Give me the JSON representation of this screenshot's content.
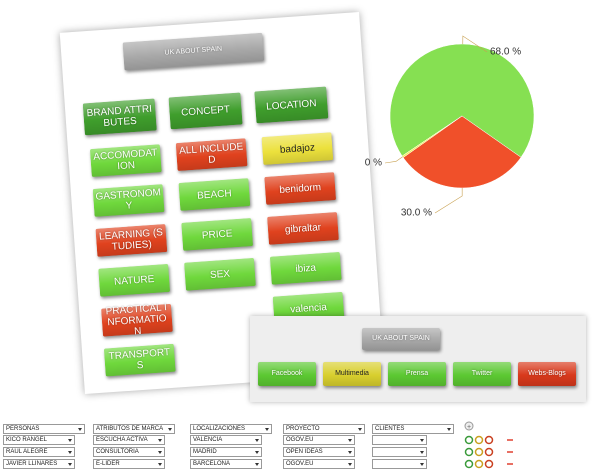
{
  "tree": {
    "root": {
      "label": "UK ABOUT SPAIN",
      "color": "#a8a8a8"
    },
    "columns": [
      {
        "header": {
          "label": "BRAND ATTRIBUTES",
          "color": "#3f9e2c"
        },
        "items": [
          {
            "label": "ACCOMODATION",
            "color": "#6fd83c"
          },
          {
            "label": "GASTRONOMY",
            "color": "#6fd83c"
          },
          {
            "label": "LEARNING (STUDIES)",
            "color": "#e0421e"
          },
          {
            "label": "NATURE",
            "color": "#6fd83c"
          },
          {
            "label": "PRACTICAL INFORMATION",
            "color": "#e0421e"
          },
          {
            "label": "TRANSPORTS",
            "color": "#6fd83c"
          }
        ]
      },
      {
        "header": {
          "label": "CONCEPT",
          "color": "#3f9e2c"
        },
        "items": [
          {
            "label": "ALL INCLUDED",
            "color": "#e0421e"
          },
          {
            "label": "BEACH",
            "color": "#6fd83c"
          },
          {
            "label": "PRICE",
            "color": "#6fd83c"
          },
          {
            "label": "SEX",
            "color": "#6fd83c"
          }
        ]
      },
      {
        "header": {
          "label": "LOCATION",
          "color": "#3f9e2c"
        },
        "items": [
          {
            "label": "badajoz",
            "color": "#ece13c"
          },
          {
            "label": "benidorm",
            "color": "#e0421e"
          },
          {
            "label": "gibraltar",
            "color": "#e0421e"
          },
          {
            "label": "ibiza",
            "color": "#6fd83c"
          },
          {
            "label": "valencia",
            "color": "#6fd83c"
          }
        ]
      }
    ]
  },
  "chart_data": {
    "type": "pie",
    "values": [
      68.0,
      30.0,
      0.4
    ],
    "value_labels": [
      "68.0 %",
      "30.0 %",
      "0 %"
    ],
    "colors": [
      "#86e052",
      "#f0502a",
      "#f2ee5a"
    ]
  },
  "tree2": {
    "root": {
      "label": "UK ABOUT SPAIN",
      "color": "#a8a8a8"
    },
    "children": [
      {
        "label": "Facebook",
        "color": "#5cc832"
      },
      {
        "label": "Multimedia",
        "color": "#d8cf2e"
      },
      {
        "label": "Prensa",
        "color": "#5cc832"
      },
      {
        "label": "Twitter",
        "color": "#5cc832"
      },
      {
        "label": "Webs-Blogs",
        "color": "#d8391c"
      }
    ]
  },
  "form": {
    "columns": [
      {
        "header": "PERSONAS",
        "rows": [
          "KICO RANGEL",
          "RAUL ALEGRE",
          "JAVIER LLINARES"
        ]
      },
      {
        "header": "ATRIBUTOS DE MARCA",
        "rows": [
          "ESCUCHA ACTIVA",
          "CONSULTORIA",
          "E-LIDER"
        ]
      },
      {
        "header": "LOCALIZACIONES",
        "rows": [
          "VALENCIA",
          "MADRID",
          "BARCELONA"
        ]
      },
      {
        "header": "PROYECTO",
        "rows": [
          "OGOV.EU",
          "OPEN IDEAS",
          "OGOV.EU"
        ]
      },
      {
        "header": "CLIENTES",
        "rows": []
      }
    ]
  }
}
